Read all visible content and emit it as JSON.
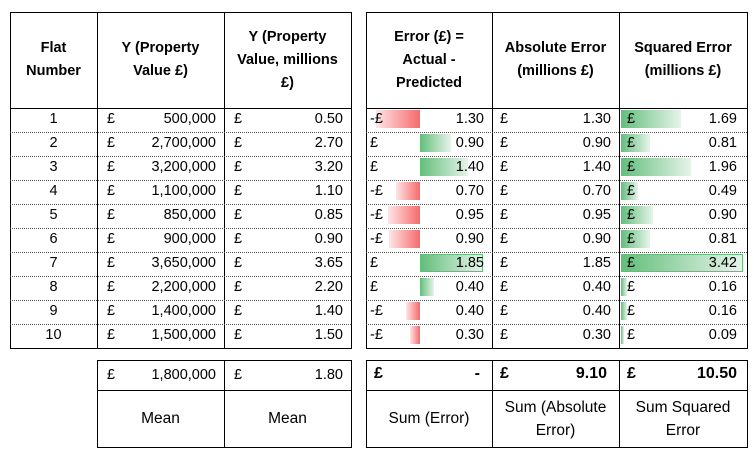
{
  "headers": {
    "flat": "Flat Number",
    "y_value": "Y (Property Value £)",
    "y_millions": "Y (Property Value, millions £)",
    "error": "Error (£) = Actual - Predicted",
    "abs_error": "Absolute Error (millions £)",
    "sq_error": "Squared Error (millions £)"
  },
  "currency": "£",
  "rows": [
    {
      "flat": "1",
      "value": "500,000",
      "millions": "0.50",
      "error_sign": "-£",
      "error": "1.30",
      "error_num": -1.3,
      "abs": "1.30",
      "abs_num": 1.3,
      "sq": "1.69",
      "sq_num": 1.69
    },
    {
      "flat": "2",
      "value": "2,700,000",
      "millions": "2.70",
      "error_sign": "£",
      "error": "0.90",
      "error_num": 0.9,
      "abs": "0.90",
      "abs_num": 0.9,
      "sq": "0.81",
      "sq_num": 0.81
    },
    {
      "flat": "3",
      "value": "3,200,000",
      "millions": "3.20",
      "error_sign": "£",
      "error": "1.40",
      "error_num": 1.4,
      "abs": "1.40",
      "abs_num": 1.4,
      "sq": "1.96",
      "sq_num": 1.96
    },
    {
      "flat": "4",
      "value": "1,100,000",
      "millions": "1.10",
      "error_sign": "-£",
      "error": "0.70",
      "error_num": -0.7,
      "abs": "0.70",
      "abs_num": 0.7,
      "sq": "0.49",
      "sq_num": 0.49
    },
    {
      "flat": "5",
      "value": "850,000",
      "millions": "0.85",
      "error_sign": "-£",
      "error": "0.95",
      "error_num": -0.95,
      "abs": "0.95",
      "abs_num": 0.95,
      "sq": "0.90",
      "sq_num": 0.9
    },
    {
      "flat": "6",
      "value": "900,000",
      "millions": "0.90",
      "error_sign": "-£",
      "error": "0.90",
      "error_num": -0.9,
      "abs": "0.90",
      "abs_num": 0.9,
      "sq": "0.81",
      "sq_num": 0.81
    },
    {
      "flat": "7",
      "value": "3,650,000",
      "millions": "3.65",
      "error_sign": "£",
      "error": "1.85",
      "error_num": 1.85,
      "abs": "1.85",
      "abs_num": 1.85,
      "sq": "3.42",
      "sq_num": 3.42
    },
    {
      "flat": "8",
      "value": "2,200,000",
      "millions": "2.20",
      "error_sign": "£",
      "error": "0.40",
      "error_num": 0.4,
      "abs": "0.40",
      "abs_num": 0.4,
      "sq": "0.16",
      "sq_num": 0.16
    },
    {
      "flat": "9",
      "value": "1,400,000",
      "millions": "1.40",
      "error_sign": "-£",
      "error": "0.40",
      "error_num": -0.4,
      "abs": "0.40",
      "abs_num": 0.4,
      "sq": "0.16",
      "sq_num": 0.16
    },
    {
      "flat": "10",
      "value": "1,500,000",
      "millions": "1.50",
      "error_sign": "-£",
      "error": "0.30",
      "error_num": -0.3,
      "abs": "0.30",
      "abs_num": 0.3,
      "sq": "0.09",
      "sq_num": 0.09
    }
  ],
  "summary": {
    "mean_value": "1,800,000",
    "mean_millions": "1.80",
    "mean_label_1": "Mean",
    "mean_label_2": "Mean",
    "sum_error": "-",
    "sum_abs": "9.10",
    "sum_sq": "10.50",
    "sum_error_label": "Sum (Error)",
    "sum_abs_label": "Sum (Absolute Error)",
    "sum_sq_label": "Sum Squared Error"
  },
  "colors": {
    "positive_bar": "#63be7b",
    "negative_bar": "#f8696b"
  }
}
